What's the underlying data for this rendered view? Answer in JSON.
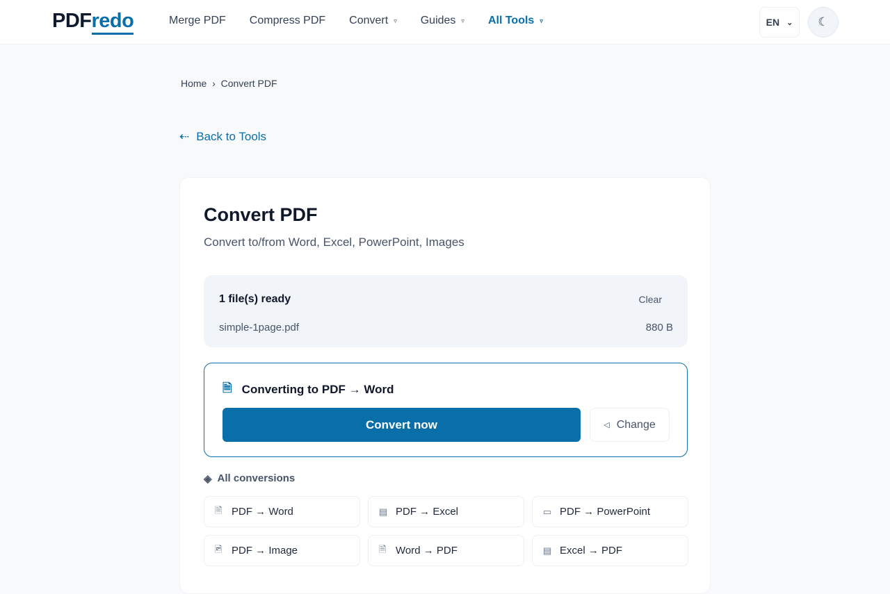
{
  "header": {
    "logo_a": "PDF",
    "logo_b": "redo",
    "nav": [
      {
        "label": "Merge PDF"
      },
      {
        "label": "Compress PDF"
      },
      {
        "label": "Convert",
        "caret": "▿"
      },
      {
        "label": "Guides",
        "caret": "▿"
      },
      {
        "label": "All Tools",
        "caret": "▿"
      }
    ],
    "lang": "EN",
    "lang_caret": "⌄",
    "theme_icon": "☾"
  },
  "breadcrumb": {
    "home": "Home",
    "sep": "›",
    "current": "Convert PDF"
  },
  "back": {
    "icon": "⇠",
    "label": "Back to Tools"
  },
  "card": {
    "title": "Convert PDF",
    "subtitle": "Convert to/from Word, Excel, PowerPoint, Images",
    "files": {
      "status": "1 file(s) ready",
      "clear": "Clear",
      "items": [
        {
          "name": "simple-1page.pdf",
          "size": "880 B"
        }
      ]
    },
    "converting": {
      "icon": "🗎",
      "label": "Converting to PDF → Word",
      "convert": "Convert now",
      "change_icon": "◁",
      "change": "Change"
    },
    "all_icon": "◈",
    "all_label": "All conversions",
    "conversions": [
      {
        "icon": "🗎",
        "label": "PDF → Word"
      },
      {
        "icon": "▤",
        "label": "PDF → Excel"
      },
      {
        "icon": "▭",
        "label": "PDF → PowerPoint"
      },
      {
        "icon": "🖻",
        "label": "PDF → Image"
      },
      {
        "icon": "🗎",
        "label": "Word → PDF"
      },
      {
        "icon": "▤",
        "label": "Excel → PDF"
      }
    ]
  },
  "colors": {
    "accent": "#0a6fa8"
  }
}
